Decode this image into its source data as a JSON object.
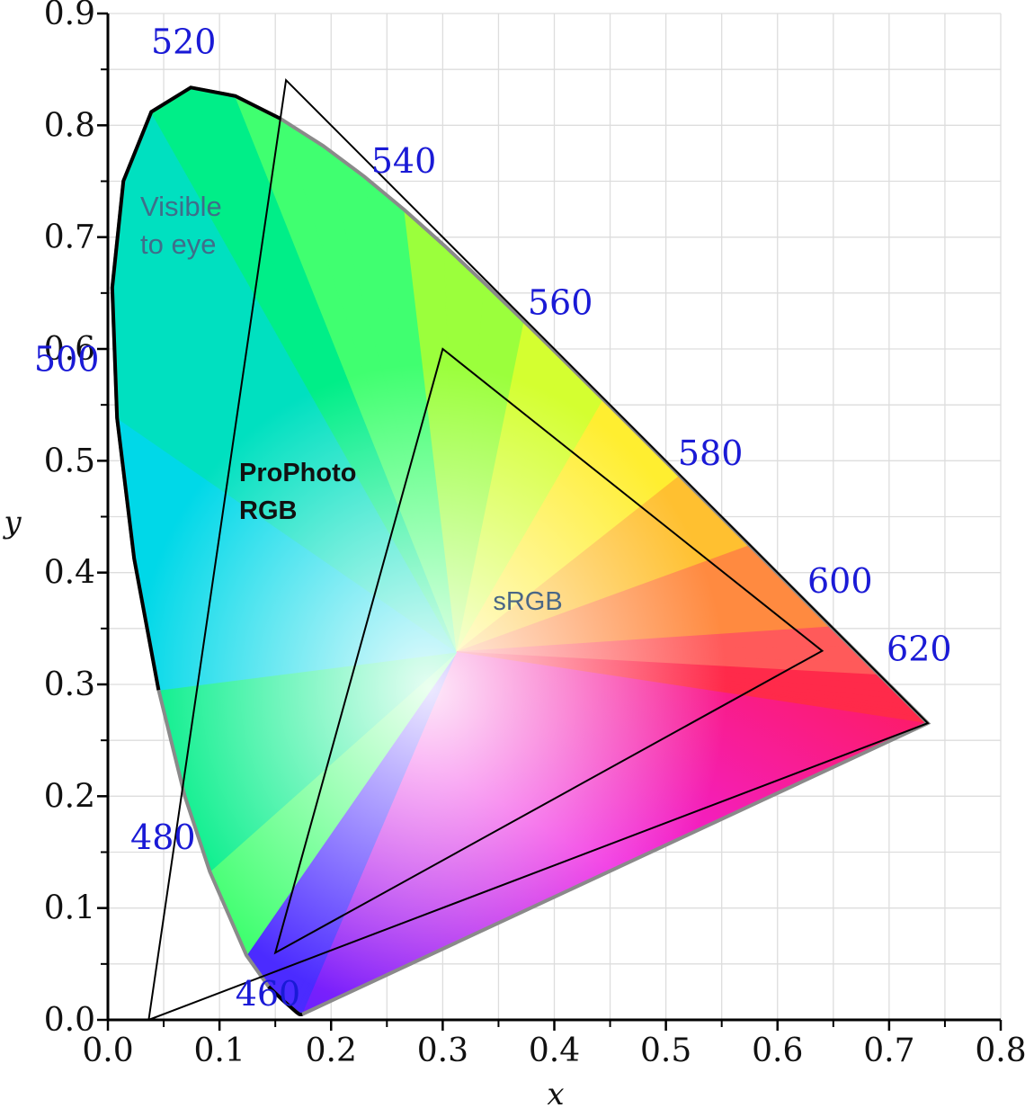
{
  "chart_data": {
    "type": "scatter",
    "title": "",
    "xlabel": "x",
    "ylabel": "y",
    "xlim": [
      0.0,
      0.8
    ],
    "ylim": [
      0.0,
      0.9
    ],
    "grid": true,
    "x_ticks": [
      "0.0",
      "0.1",
      "0.2",
      "0.3",
      "0.4",
      "0.5",
      "0.6",
      "0.7",
      "0.8"
    ],
    "y_ticks": [
      "0.0",
      "0.1",
      "0.2",
      "0.3",
      "0.4",
      "0.5",
      "0.6",
      "0.7",
      "0.8",
      "0.9"
    ],
    "spectral_locus": {
      "x": [
        0.1741,
        0.1738,
        0.1733,
        0.1726,
        0.1714,
        0.1689,
        0.1644,
        0.1566,
        0.144,
        0.1241,
        0.0913,
        0.0687,
        0.0454,
        0.0235,
        0.0082,
        0.0039,
        0.0139,
        0.0389,
        0.0743,
        0.1142,
        0.1547,
        0.1929,
        0.2296,
        0.2658,
        0.3016,
        0.3373,
        0.3731,
        0.4087,
        0.4441,
        0.4788,
        0.5125,
        0.5448,
        0.5752,
        0.6029,
        0.627,
        0.6482,
        0.6658,
        0.6801,
        0.6915,
        0.7006,
        0.7079,
        0.714,
        0.719,
        0.723,
        0.726,
        0.7283,
        0.73,
        0.7347
      ],
      "y": [
        0.005,
        0.0049,
        0.0048,
        0.0048,
        0.0051,
        0.0069,
        0.0109,
        0.0177,
        0.0297,
        0.0578,
        0.1327,
        0.2007,
        0.295,
        0.4127,
        0.5384,
        0.6548,
        0.7502,
        0.812,
        0.8338,
        0.8262,
        0.8059,
        0.7816,
        0.7543,
        0.7243,
        0.6923,
        0.6589,
        0.6245,
        0.5896,
        0.5547,
        0.5202,
        0.4866,
        0.4544,
        0.4242,
        0.3965,
        0.3725,
        0.3514,
        0.334,
        0.3197,
        0.3083,
        0.2993,
        0.292,
        0.2859,
        0.2809,
        0.277,
        0.274,
        0.2717,
        0.27,
        0.2653
      ]
    },
    "wavelength_labels": [
      {
        "text": "460",
        "x": 0.174,
        "y": 0.005
      },
      {
        "text": "480",
        "x": 0.0913,
        "y": 0.1327
      },
      {
        "text": "500",
        "x": 0.0082,
        "y": 0.5384
      },
      {
        "text": "520",
        "x": 0.0743,
        "y": 0.8338
      },
      {
        "text": "540",
        "x": 0.2296,
        "y": 0.7543
      },
      {
        "text": "560",
        "x": 0.3731,
        "y": 0.6245
      },
      {
        "text": "580",
        "x": 0.5125,
        "y": 0.4866
      },
      {
        "text": "600",
        "x": 0.627,
        "y": 0.3725
      },
      {
        "text": "620",
        "x": 0.6915,
        "y": 0.3083
      }
    ],
    "gamuts": [
      {
        "name": "ProPhoto RGB",
        "vertices": [
          [
            0.7347,
            0.2653
          ],
          [
            0.1596,
            0.8404
          ],
          [
            0.0366,
            0.0001
          ]
        ]
      },
      {
        "name": "sRGB",
        "vertices": [
          [
            0.64,
            0.33
          ],
          [
            0.3,
            0.6
          ],
          [
            0.15,
            0.06
          ]
        ]
      }
    ],
    "annotations": {
      "visible": [
        "Visible",
        "to eye"
      ],
      "prophoto": [
        "ProPhoto",
        "RGB"
      ],
      "srgb": "sRGB"
    }
  },
  "colors": {
    "locus_dark": "#000000",
    "locus_gray": "#8a8a8a",
    "wavelength_text": "#1a1ad6",
    "visible_text": "#3f6e8a",
    "prophoto_text": "#111111",
    "srgb_text": "#4a6786",
    "grid": "#dddddd"
  }
}
